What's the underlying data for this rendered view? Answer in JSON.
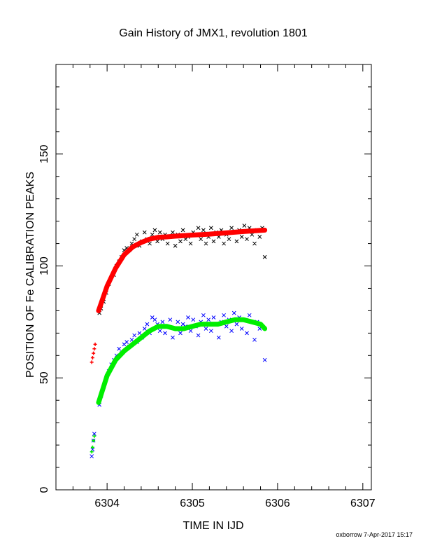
{
  "chart_data": {
    "type": "scatter",
    "title": "Gain History of JMX1, revolution 1801",
    "xlabel": "TIME IN IJD",
    "ylabel": "POSITION OF Fe CALIBRATION PEAKS",
    "xlim": [
      6303.4,
      6307.1
    ],
    "ylim": [
      0,
      190
    ],
    "xticks": [
      6304,
      6305,
      6306,
      6307
    ],
    "yticks": [
      0,
      50,
      100,
      150
    ],
    "grid": false,
    "colors": {
      "upper_points": "#000000",
      "upper_fit": "#ff0000",
      "lower_points": "#0000ff",
      "lower_fit": "#00ee00"
    },
    "series": [
      {
        "marker": "x",
        "color": "#000000",
        "x": [
          6303.91,
          6303.93,
          6303.96,
          6303.99,
          6304.02,
          6304.05,
          6304.08,
          6304.11,
          6304.14,
          6304.17,
          6304.2,
          6304.23,
          6304.26,
          6304.29,
          6304.32,
          6304.35,
          6304.38,
          6304.41,
          6304.44,
          6304.47,
          6304.5,
          6304.53,
          6304.56,
          6304.59,
          6304.62,
          6304.65,
          6304.68,
          6304.71,
          6304.74,
          6304.77,
          6304.8,
          6304.83,
          6304.86,
          6304.89,
          6304.92,
          6304.95,
          6304.98,
          6305.01,
          6305.04,
          6305.07,
          6305.1,
          6305.13,
          6305.16,
          6305.19,
          6305.22,
          6305.25,
          6305.28,
          6305.31,
          6305.34,
          6305.37,
          6305.4,
          6305.43,
          6305.46,
          6305.49,
          6305.52,
          6305.55,
          6305.58,
          6305.61,
          6305.64,
          6305.67,
          6305.7,
          6305.73,
          6305.76,
          6305.79,
          6305.82,
          6305.85
        ],
        "y": [
          79,
          81,
          84,
          88,
          92,
          95,
          96,
          100,
          102,
          104,
          107,
          108,
          107,
          110,
          112,
          114,
          109,
          111,
          115,
          112,
          110,
          114,
          116,
          111,
          115,
          112,
          114,
          110,
          113,
          115,
          109,
          114,
          111,
          116,
          112,
          113,
          110,
          115,
          114,
          117,
          112,
          116,
          110,
          113,
          117,
          111,
          115,
          113,
          116,
          110,
          114,
          112,
          117,
          115,
          111,
          116,
          113,
          118,
          112,
          117,
          114,
          110,
          116,
          113,
          117,
          104
        ]
      },
      {
        "marker": "+",
        "color": "#ff0000",
        "x": [
          6303.82,
          6303.83,
          6303.84,
          6303.85,
          6303.86
        ],
        "y": [
          57,
          59,
          61,
          63,
          65
        ]
      },
      {
        "marker": "line",
        "color": "#ff0000",
        "x": [
          6303.9,
          6304.0,
          6304.1,
          6304.2,
          6304.3,
          6304.4,
          6304.5,
          6304.6,
          6304.7,
          6304.8,
          6305.0,
          6305.2,
          6305.4,
          6305.6,
          6305.85
        ],
        "y": [
          80,
          91,
          99,
          105,
          108.5,
          110.5,
          112,
          112.8,
          113,
          113.3,
          113.8,
          114.2,
          114.8,
          115.4,
          116
        ]
      },
      {
        "marker": "x",
        "color": "#0000ff",
        "x": [
          6303.82,
          6303.83,
          6303.84,
          6303.85,
          6303.91,
          6303.93,
          6303.96,
          6303.99,
          6304.02,
          6304.05,
          6304.08,
          6304.11,
          6304.14,
          6304.17,
          6304.2,
          6304.23,
          6304.26,
          6304.29,
          6304.32,
          6304.35,
          6304.38,
          6304.41,
          6304.44,
          6304.47,
          6304.5,
          6304.53,
          6304.56,
          6304.59,
          6304.62,
          6304.65,
          6304.68,
          6304.71,
          6304.74,
          6304.77,
          6304.8,
          6304.83,
          6304.86,
          6304.89,
          6304.92,
          6304.95,
          6304.98,
          6305.01,
          6305.04,
          6305.07,
          6305.1,
          6305.13,
          6305.16,
          6305.19,
          6305.22,
          6305.25,
          6305.28,
          6305.31,
          6305.34,
          6305.37,
          6305.4,
          6305.43,
          6305.46,
          6305.49,
          6305.52,
          6305.55,
          6305.58,
          6305.61,
          6305.64,
          6305.67,
          6305.7,
          6305.73,
          6305.76,
          6305.79,
          6305.82,
          6305.85
        ],
        "y": [
          15,
          18,
          22,
          25,
          38,
          42,
          46,
          50,
          53,
          56,
          58,
          60,
          63,
          61,
          65,
          66,
          64,
          67,
          69,
          66,
          70,
          68,
          72,
          74,
          70,
          77,
          76,
          74,
          71,
          75,
          70,
          73,
          76,
          68,
          72,
          75,
          70,
          74,
          73,
          77,
          71,
          76,
          73,
          69,
          75,
          78,
          72,
          76,
          71,
          77,
          74,
          68,
          75,
          78,
          73,
          76,
          71,
          79,
          74,
          77,
          72,
          76,
          70,
          78,
          75,
          67,
          75,
          72,
          73,
          58
        ]
      },
      {
        "marker": "+",
        "color": "#00ee00",
        "x": [
          6303.82,
          6303.83,
          6303.84,
          6303.85
        ],
        "y": [
          17,
          19,
          22,
          24
        ]
      },
      {
        "marker": "line",
        "color": "#00ee00",
        "x": [
          6303.9,
          6304.0,
          6304.1,
          6304.2,
          6304.3,
          6304.4,
          6304.5,
          6304.6,
          6304.7,
          6304.8,
          6304.9,
          6305.0,
          6305.1,
          6305.2,
          6305.3,
          6305.4,
          6305.5,
          6305.6,
          6305.7,
          6305.8,
          6305.85
        ],
        "y": [
          39,
          51,
          58,
          62,
          65,
          68,
          71,
          73,
          73,
          72,
          72,
          73,
          74,
          74,
          74,
          75,
          76,
          76,
          75,
          74,
          72
        ]
      }
    ]
  },
  "footer": "oxborrow 7-Apr-2017 15:17"
}
